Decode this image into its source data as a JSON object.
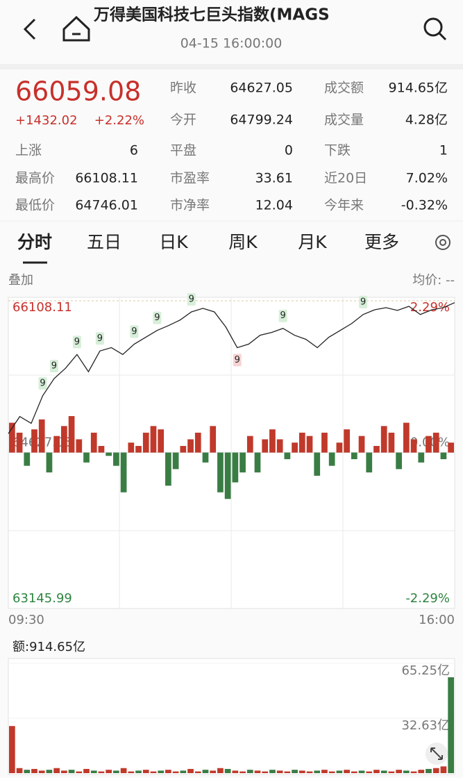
{
  "header": {
    "title": "万得美国科技七巨头指数(MAGS",
    "time": "04-15 16:00:00"
  },
  "quote": {
    "price": "66059.08",
    "change": "+1432.02",
    "change_pct": "+2.22%",
    "stats": [
      [
        {
          "label": "昨收",
          "value": "64627.05"
        },
        {
          "label": "成交额",
          "value": "914.65亿"
        }
      ],
      [
        {
          "label": "今开",
          "value": "64799.24"
        },
        {
          "label": "成交量",
          "value": "4.28亿"
        }
      ],
      [
        {
          "label": "上涨",
          "value": "6"
        },
        {
          "label": "平盘",
          "value": "0"
        },
        {
          "label": "下跌",
          "value": "1"
        }
      ],
      [
        {
          "label": "最高价",
          "value": "66108.11"
        },
        {
          "label": "市盈率",
          "value": "33.61"
        },
        {
          "label": "近20日",
          "value": "7.02%"
        }
      ],
      [
        {
          "label": "最低价",
          "value": "64746.01"
        },
        {
          "label": "市净率",
          "value": "12.04"
        },
        {
          "label": "今年来",
          "value": "-0.32%"
        }
      ]
    ]
  },
  "tabs": [
    "分时",
    "五日",
    "日K",
    "周K",
    "月K",
    "更多"
  ],
  "overlay_label": "叠加",
  "avg_label": "均价: --",
  "chart_data": {
    "type": "line",
    "ylim": [
      63145.99,
      66108.11
    ],
    "yticks": [
      63145.99,
      64627.05,
      66108.11
    ],
    "y2lim": [
      -2.29,
      2.29
    ],
    "y2ticks": [
      {
        "value": -2.29,
        "label": "-2.29%"
      },
      {
        "value": 0,
        "label": "0.00%"
      },
      {
        "value": 2.29,
        "label": "2.29%"
      }
    ],
    "x_start": "09:30",
    "x_end": "16:00",
    "series": [
      {
        "name": "price",
        "color": "#222222",
        "values": [
          64812,
          64979,
          64912,
          65181,
          65349,
          65450,
          65584,
          65416,
          65618,
          65651,
          65584,
          65685,
          65752,
          65819,
          65866,
          65920,
          66000,
          66034,
          66000,
          65853,
          65651,
          65685,
          65772,
          65799,
          65839,
          65772,
          65732,
          65651,
          65752,
          65819,
          65886,
          65974,
          66020,
          66041,
          66014,
          66054,
          65974,
          66020,
          66041,
          66090
        ]
      }
    ],
    "buy_signals": [
      null,
      null,
      null,
      "9",
      "9",
      null,
      "9",
      null,
      "9",
      null,
      null,
      "9",
      null,
      "9",
      null,
      null,
      "9",
      null,
      null,
      null,
      null,
      null,
      null,
      null,
      "9",
      null,
      null,
      null,
      null,
      null,
      null,
      "9",
      null,
      null,
      null,
      null,
      null,
      null,
      null,
      null
    ],
    "sell_signals": [
      null,
      null,
      null,
      null,
      null,
      null,
      null,
      null,
      null,
      null,
      null,
      null,
      null,
      null,
      null,
      null,
      null,
      null,
      null,
      null,
      "9",
      null,
      null,
      null,
      null,
      null,
      null,
      null,
      null,
      null,
      null,
      null,
      null,
      null,
      null,
      null,
      null,
      null,
      null,
      null
    ],
    "bars": {
      "up_color": "#c0392b",
      "down_color": "#3a7d44",
      "axis": "y2",
      "values": [
        0.45,
        0.3,
        -0.2,
        0.35,
        0.5,
        -0.3,
        0.25,
        0.4,
        0.55,
        0.2,
        -0.15,
        0.3,
        0.1,
        -0.05,
        -0.2,
        -0.6,
        0.15,
        0.1,
        0.3,
        0.4,
        0.35,
        -0.5,
        -0.25,
        0.1,
        0.2,
        0.3,
        -0.15,
        0.4,
        -0.6,
        -0.7,
        -0.45,
        -0.3,
        0.25,
        -0.3,
        0.2,
        0.35,
        0.2,
        -0.1,
        0.15,
        0.3,
        0.25,
        -0.35,
        0.3,
        -0.2,
        0.15,
        0.35,
        -0.1,
        0.25,
        -0.3,
        0.1,
        0.4,
        0.3,
        -0.25,
        0.45,
        0.2,
        -0.15,
        0.25,
        0.3,
        -0.1,
        0.15
      ]
    }
  },
  "volume_chart": {
    "type": "bar",
    "label": "额:914.65亿",
    "ylim": [
      0,
      65.25
    ],
    "yticks": [
      {
        "value": 32.63,
        "label": "32.63亿"
      },
      {
        "value": 65.25,
        "label": "65.25亿"
      }
    ],
    "up_color": "#c0392b",
    "down_color": "#3a7d44",
    "values": [
      28,
      3,
      2,
      2.5,
      1.5,
      2,
      3,
      1.5,
      2,
      1,
      2.5,
      1.5,
      1,
      2,
      1.5,
      3,
      1,
      1.5,
      2,
      1,
      1.5,
      2,
      1,
      1.5,
      2.5,
      1,
      2,
      1.5,
      3,
      2.5,
      1.5,
      1,
      2,
      1.5,
      1,
      2,
      1.5,
      1,
      2,
      1.5,
      1,
      1.5,
      2,
      1,
      1.5,
      2,
      1,
      1.5,
      1,
      2,
      1.5,
      1,
      2,
      1.5,
      1,
      2,
      2.5,
      3,
      4,
      57
    ]
  }
}
